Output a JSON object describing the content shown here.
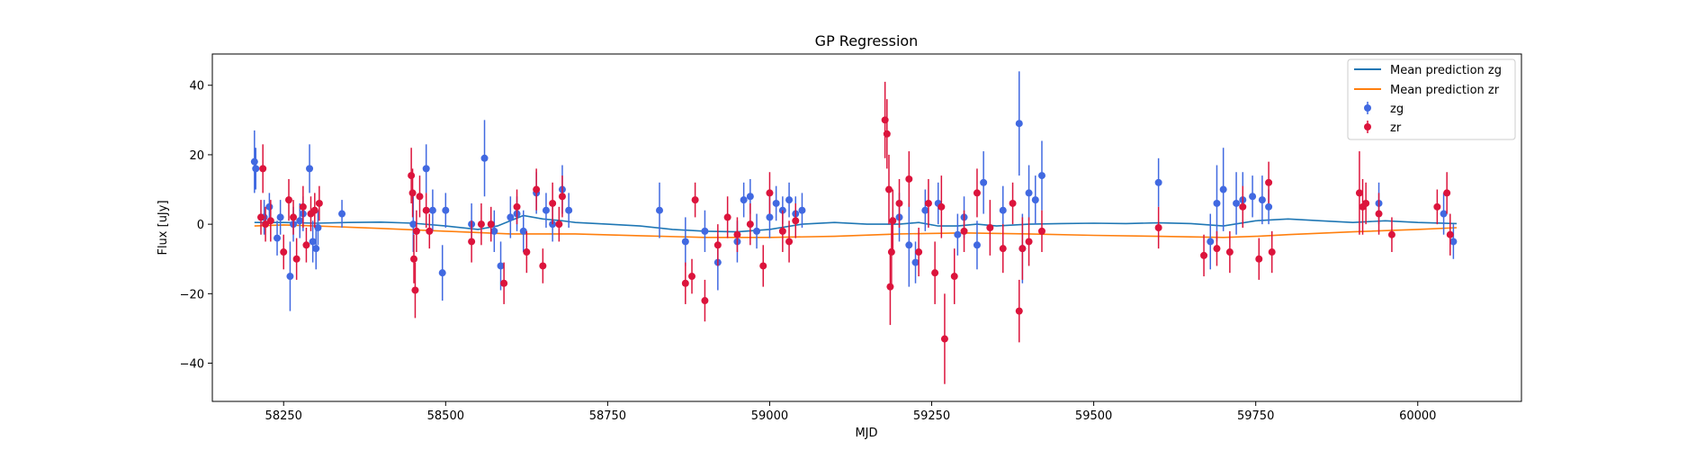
{
  "chart_data": {
    "type": "scatter",
    "title": "GP Regression",
    "xlabel": "MJD",
    "ylabel": "Flux [uJy]",
    "xlim": [
      58140,
      60160
    ],
    "ylim": [
      -51,
      49
    ],
    "xticks": [
      58250,
      58500,
      58750,
      59000,
      59250,
      59500,
      59750,
      60000
    ],
    "yticks": [
      -40,
      -20,
      0,
      20,
      40
    ],
    "grid": false,
    "legend_position": "top-right",
    "legend": [
      "Mean prediction zg",
      "Mean prediction zr",
      "zg",
      "zr"
    ],
    "colors": {
      "zg_points": "#4169e1",
      "zr_points": "#dc143c",
      "zg_line": "#1f77b4",
      "zr_line": "#ff7f0e"
    },
    "series": [
      {
        "name": "Mean prediction zg",
        "kind": "line",
        "x": [
          58205,
          58250,
          58300,
          58350,
          58400,
          58450,
          58500,
          58550,
          58580,
          58600,
          58620,
          58650,
          58680,
          58700,
          58750,
          58800,
          58850,
          58900,
          58950,
          59000,
          59050,
          59100,
          59150,
          59200,
          59230,
          59260,
          59290,
          59320,
          59350,
          59400,
          59450,
          59500,
          59550,
          59600,
          59650,
          59700,
          59750,
          59800,
          59850,
          59900,
          59950,
          60000,
          60060
        ],
        "y": [
          0.5,
          0.5,
          0.3,
          0.5,
          0.6,
          0.3,
          -0.5,
          -1.5,
          -0.5,
          1.0,
          2.5,
          1.5,
          1.0,
          0.5,
          0.0,
          -0.5,
          -1.5,
          -2.0,
          -2.2,
          -1.5,
          0.0,
          0.5,
          0.0,
          0.0,
          0.5,
          -0.5,
          -0.5,
          0.0,
          -0.5,
          0.0,
          0.2,
          0.3,
          0.2,
          0.4,
          0.2,
          -0.5,
          1.0,
          1.5,
          1.0,
          0.5,
          1.0,
          0.5,
          0.2
        ]
      },
      {
        "name": "Mean prediction zr",
        "kind": "line",
        "x": [
          58205,
          58250,
          58300,
          58400,
          58500,
          58600,
          58700,
          58800,
          58900,
          59000,
          59100,
          59200,
          59300,
          59400,
          59500,
          59600,
          59700,
          59750,
          59800,
          59900,
          60000,
          60060
        ],
        "y": [
          -0.5,
          -0.2,
          -0.5,
          -1.2,
          -2.0,
          -2.8,
          -2.8,
          -3.3,
          -3.8,
          -3.8,
          -3.5,
          -2.8,
          -2.5,
          -2.8,
          -3.2,
          -3.5,
          -3.8,
          -3.5,
          -3.0,
          -2.2,
          -1.5,
          -1.0
        ]
      },
      {
        "name": "zg",
        "kind": "errorbar",
        "x": [
          58205,
          58207,
          58220,
          58228,
          58240,
          58245,
          58260,
          58265,
          58275,
          58280,
          58290,
          58295,
          58300,
          58303,
          58340,
          58450,
          58470,
          58480,
          58495,
          58500,
          58540,
          58560,
          58575,
          58585,
          58600,
          58610,
          58620,
          58640,
          58655,
          58665,
          58680,
          58690,
          58830,
          58870,
          58900,
          58920,
          58950,
          58960,
          58970,
          58980,
          59000,
          59010,
          59020,
          59030,
          59040,
          59050,
          59200,
          59215,
          59225,
          59240,
          59260,
          59290,
          59300,
          59320,
          59330,
          59360,
          59385,
          59390,
          59400,
          59410,
          59420,
          59600,
          59680,
          59690,
          59700,
          59720,
          59730,
          59745,
          59760,
          59770,
          59940,
          60040,
          60055
        ],
        "y": [
          18,
          16,
          2,
          5,
          -4,
          2,
          -15,
          0,
          1,
          3,
          16,
          -5,
          -7,
          -1,
          3,
          0,
          16,
          4,
          -14,
          4,
          0,
          19,
          -2,
          -12,
          2,
          3,
          -2,
          9,
          4,
          0,
          10,
          4,
          4,
          -5,
          -2,
          -11,
          -5,
          7,
          8,
          -2,
          2,
          6,
          4,
          7,
          3,
          4,
          2,
          -6,
          -11,
          4,
          6,
          -3,
          2,
          -6,
          12,
          4,
          29,
          -7,
          9,
          7,
          14,
          12,
          -5,
          6,
          10,
          6,
          7,
          8,
          7,
          5,
          6,
          3,
          -5
        ],
        "yerr": [
          9,
          6,
          5,
          4,
          5,
          5,
          10,
          5,
          5,
          5,
          7,
          6,
          6,
          5,
          4,
          8,
          7,
          6,
          8,
          5,
          6,
          11,
          6,
          7,
          6,
          5,
          6,
          6,
          5,
          5,
          7,
          5,
          8,
          7,
          6,
          8,
          6,
          5,
          5,
          5,
          6,
          5,
          4,
          5,
          5,
          5,
          7,
          12,
          6,
          6,
          6,
          6,
          6,
          7,
          9,
          7,
          15,
          10,
          8,
          7,
          10,
          7,
          8,
          11,
          12,
          9,
          8,
          6,
          7,
          5,
          6,
          6,
          5
        ]
      },
      {
        "name": "zr",
        "kind": "errorbar",
        "x": [
          58215,
          58218,
          58222,
          58230,
          58250,
          58258,
          58265,
          58270,
          58280,
          58285,
          58292,
          58298,
          58305,
          58447,
          58449,
          58451,
          58453,
          58455,
          58460,
          58470,
          58475,
          58540,
          58555,
          58570,
          58590,
          58610,
          58625,
          58640,
          58650,
          58665,
          58675,
          58680,
          58870,
          58880,
          58885,
          58900,
          58920,
          58935,
          58950,
          58970,
          58990,
          59000,
          59020,
          59030,
          59040,
          59178,
          59181,
          59184,
          59186,
          59188,
          59190,
          59200,
          59215,
          59230,
          59245,
          59255,
          59265,
          59270,
          59285,
          59300,
          59320,
          59340,
          59360,
          59375,
          59385,
          59390,
          59400,
          59420,
          59600,
          59670,
          59690,
          59710,
          59730,
          59755,
          59770,
          59775,
          59910,
          59915,
          59920,
          59940,
          59960,
          60030,
          60045,
          60050
        ],
        "y": [
          2,
          16,
          0,
          1,
          -8,
          7,
          2,
          -10,
          5,
          -6,
          3,
          4,
          6,
          14,
          9,
          -10,
          -19,
          -2,
          8,
          4,
          -2,
          -5,
          0,
          0,
          -17,
          5,
          -8,
          10,
          -12,
          6,
          0,
          8,
          -17,
          -15,
          7,
          -22,
          -6,
          2,
          -3,
          0,
          -12,
          9,
          -2,
          -5,
          1,
          30,
          26,
          10,
          -18,
          -8,
          1,
          6,
          13,
          -8,
          6,
          -14,
          5,
          -33,
          -15,
          -2,
          9,
          -1,
          -7,
          6,
          -25,
          -7,
          -5,
          -2,
          -1,
          -9,
          -7,
          -8,
          5,
          -10,
          12,
          -8,
          9,
          5,
          6,
          3,
          -3,
          5,
          9,
          -3
        ],
        "yerr": [
          5,
          7,
          5,
          6,
          5,
          6,
          5,
          6,
          6,
          5,
          5,
          5,
          5,
          8,
          7,
          7,
          8,
          6,
          6,
          5,
          5,
          6,
          6,
          5,
          6,
          5,
          6,
          6,
          5,
          6,
          5,
          6,
          6,
          5,
          5,
          6,
          6,
          6,
          5,
          6,
          6,
          6,
          6,
          6,
          5,
          11,
          10,
          10,
          11,
          10,
          9,
          7,
          8,
          7,
          7,
          9,
          9,
          13,
          8,
          6,
          7,
          8,
          7,
          6,
          9,
          9,
          7,
          6,
          6,
          6,
          5,
          6,
          6,
          6,
          6,
          6,
          12,
          8,
          6,
          6,
          5,
          5,
          6,
          6
        ]
      }
    ]
  }
}
